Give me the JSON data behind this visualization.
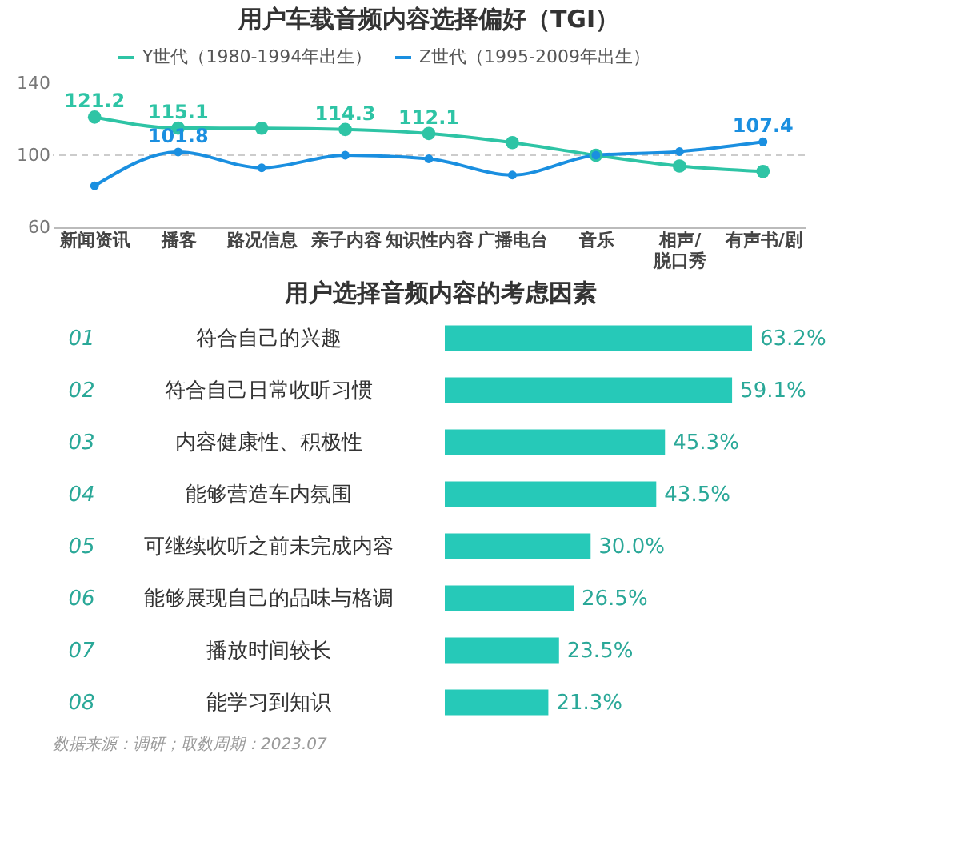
{
  "chart_data": [
    {
      "type": "line",
      "title": "用户车载音频内容选择偏好（TGI）",
      "categories": [
        "新闻资讯",
        "播客",
        "路况信息",
        "亲子内容",
        "知识性内容",
        "广播电台",
        "音乐",
        "相声/脱口秀",
        "有声书/剧"
      ],
      "series": [
        {
          "name": "Y世代（1980-1994年出生）",
          "color": "#2ec4a5",
          "values": [
            121.2,
            115.1,
            115,
            114.3,
            112.1,
            107,
            100,
            94,
            91
          ],
          "value_labels": [
            "121.2",
            "115.1",
            null,
            "114.3",
            "112.1",
            null,
            null,
            null,
            null
          ]
        },
        {
          "name": "Z世代（1995-2009年出生）",
          "color": "#1a8fe0",
          "values": [
            83,
            101.8,
            93,
            100,
            98,
            89,
            100,
            102,
            107.4
          ],
          "value_labels": [
            null,
            "101.8",
            null,
            null,
            null,
            null,
            null,
            null,
            "107.4"
          ]
        }
      ],
      "ylim": [
        60,
        140
      ],
      "yticks": [
        60,
        100,
        140
      ],
      "grid": false,
      "legend": "top",
      "marker": "circle",
      "line_style": "solid",
      "ref_lines": [
        {
          "axis": "y",
          "value": 100,
          "color": "#cccccc",
          "line_style": "dashed"
        }
      ]
    },
    {
      "type": "bar",
      "orientation": "horizontal",
      "title": "用户选择音频内容的考虑因素",
      "categories": [
        "符合自己的兴趣",
        "符合自己日常收听习惯",
        "内容健康性、积极性",
        "能够营造车内氛围",
        "可继续收听之前未完成内容",
        "能够展现自己的品味与格调",
        "播放时间较长",
        "能学习到知识"
      ],
      "values": [
        63.2,
        59.1,
        45.3,
        43.5,
        30.0,
        26.5,
        23.5,
        21.3
      ],
      "color": "#26c9b8",
      "value_labels": [
        "63.2%",
        "59.1%",
        "45.3%",
        "43.5%",
        "30.0%",
        "26.5%",
        "23.5%",
        "21.3%"
      ],
      "annotations": [
        "01",
        "02",
        "03",
        "04",
        "05",
        "06",
        "07",
        "08",
        "数据来源：调研；取数周期：2023.07"
      ]
    }
  ]
}
